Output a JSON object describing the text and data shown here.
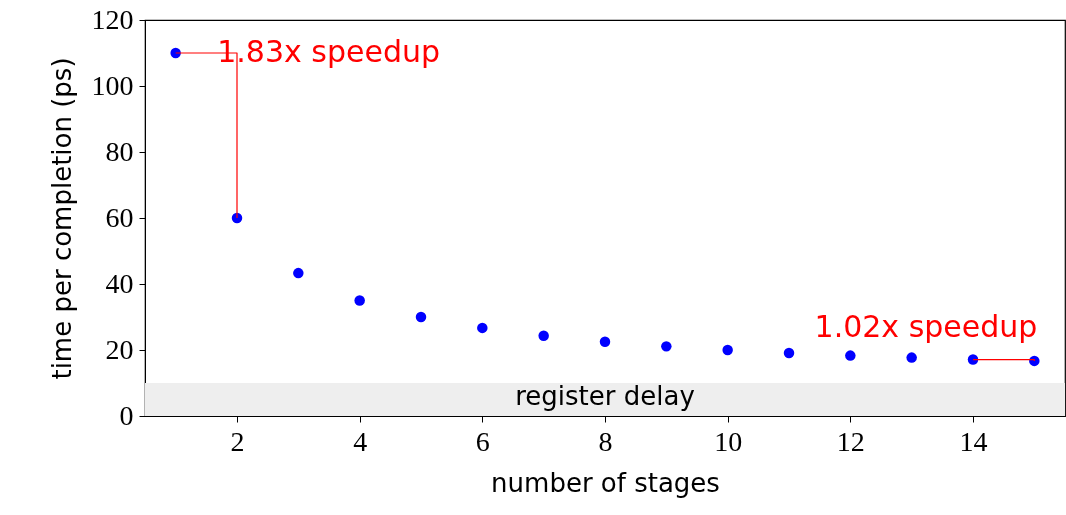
{
  "chart_data": {
    "type": "scatter",
    "xlabel": "number of stages",
    "ylabel": "time per completion (ps)",
    "xlim": [
      0.5,
      15.5
    ],
    "xticks": [
      2,
      4,
      6,
      8,
      10,
      12,
      14
    ],
    "ylim": [
      0,
      120
    ],
    "yticks": [
      0,
      20,
      40,
      60,
      80,
      100,
      120
    ],
    "series": [
      {
        "color": "#0000ff",
        "marker": "circle",
        "x": [
          1,
          2,
          3,
          4,
          5,
          6,
          7,
          8,
          9,
          10,
          11,
          12,
          13,
          14,
          15
        ],
        "values": [
          110,
          60,
          43.3,
          35,
          30,
          26.7,
          24.3,
          22.5,
          21.1,
          20,
          19.1,
          18.3,
          17.7,
          17.1,
          16.7
        ]
      },
      {
        "type": "line",
        "marker": "none",
        "color": "#ff0000",
        "x": [
          1,
          2,
          2
        ],
        "values": [
          110,
          110,
          60
        ]
      },
      {
        "type": "line",
        "marker": "none",
        "color": "#ff0000",
        "x": [
          14,
          15,
          15
        ],
        "values": [
          17.1,
          17.1,
          16.7
        ]
      }
    ],
    "bands": [
      {
        "axis": "y",
        "from": 0,
        "to": 10,
        "label": "register delay",
        "color": "#eeeeee"
      }
    ],
    "annotations": [
      "1.83x speedup",
      "1.02x speedup"
    ]
  }
}
